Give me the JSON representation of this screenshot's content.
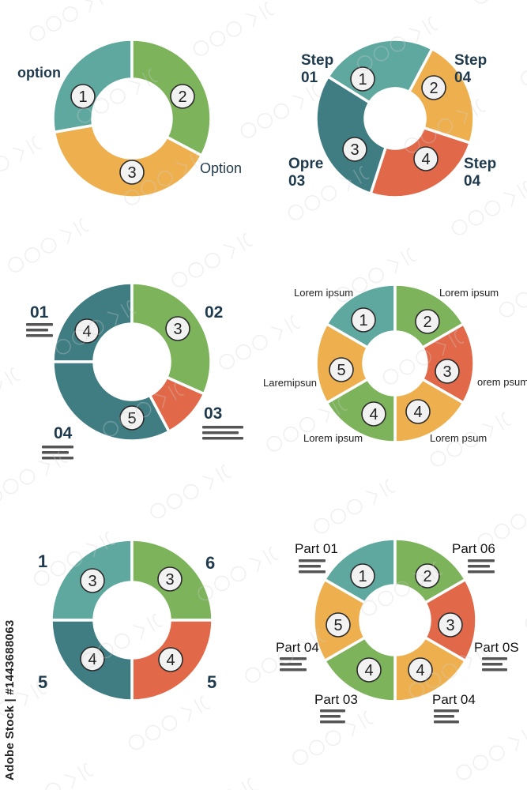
{
  "colors": {
    "teal": "#5fa8a0",
    "green": "#7cb35b",
    "orange": "#eeb04f",
    "red": "#e16949",
    "darkteal": "#3f7d83",
    "navy": "#1f3a4c",
    "badge": "#f2f2f2"
  },
  "credit": "Adobe Stock | #1443688063",
  "diagrams": [
    {
      "id": "d1",
      "segments": [
        {
          "num": "1",
          "color": "teal"
        },
        {
          "num": "2",
          "color": "green"
        },
        {
          "num": "3",
          "color": "orange"
        }
      ],
      "labels": [
        {
          "text": "option",
          "color": "navy"
        },
        {
          "text": "Option",
          "color": "navy"
        }
      ]
    },
    {
      "id": "d2",
      "segments": [
        {
          "num": "1",
          "color": "teal"
        },
        {
          "num": "2",
          "color": "orange"
        },
        {
          "num": "4",
          "color": "red"
        },
        {
          "num": "3",
          "color": "darkteal"
        }
      ],
      "labels": [
        {
          "text": "Step\n01",
          "color": "navy"
        },
        {
          "text": "Step\n04",
          "color": "navy"
        },
        {
          "text": "Step\n04",
          "color": "navy"
        },
        {
          "text": "Opre\n03",
          "color": "navy"
        }
      ]
    },
    {
      "id": "d3",
      "segments": [
        {
          "num": "4",
          "color": "darkteal"
        },
        {
          "num": "3",
          "color": "green"
        },
        {
          "num": "",
          "color": "red"
        },
        {
          "num": "5",
          "color": "darkteal"
        }
      ],
      "labels": [
        {
          "text": "01",
          "color": "navy"
        },
        {
          "text": "02",
          "color": "navy"
        },
        {
          "text": "03",
          "color": "navy"
        },
        {
          "text": "04",
          "color": "navy"
        }
      ]
    },
    {
      "id": "d4",
      "segments": [
        {
          "num": "1",
          "color": "teal"
        },
        {
          "num": "2",
          "color": "green"
        },
        {
          "num": "3",
          "color": "red"
        },
        {
          "num": "4",
          "color": "orange"
        },
        {
          "num": "4",
          "color": "green"
        },
        {
          "num": "5",
          "color": "orange"
        }
      ],
      "labels": [
        {
          "text": "Lorem ipsum",
          "color": "#222222"
        },
        {
          "text": "Lorem ipsum",
          "color": "#222222"
        },
        {
          "text": "orem psum",
          "color": "#222222"
        },
        {
          "text": "Lorem  psum",
          "color": "#222222"
        },
        {
          "text": "Lorem ipsum",
          "color": "#222222"
        },
        {
          "text": "Laremipsun",
          "color": "#222222"
        }
      ]
    },
    {
      "id": "d5",
      "segments": [
        {
          "num": "3",
          "color": "teal"
        },
        {
          "num": "3",
          "color": "green"
        },
        {
          "num": "4",
          "color": "red"
        },
        {
          "num": "4",
          "color": "darkteal"
        }
      ],
      "labels": [
        {
          "text": "1",
          "color": "navy"
        },
        {
          "text": "6",
          "color": "navy"
        },
        {
          "text": "5",
          "color": "navy"
        },
        {
          "text": "5",
          "color": "navy"
        }
      ]
    },
    {
      "id": "d6",
      "segments": [
        {
          "num": "1",
          "color": "teal"
        },
        {
          "num": "2",
          "color": "green"
        },
        {
          "num": "3",
          "color": "red"
        },
        {
          "num": "4",
          "color": "orange"
        },
        {
          "num": "4",
          "color": "green"
        },
        {
          "num": "5",
          "color": "orange"
        }
      ],
      "labels": [
        {
          "text": "Part 01",
          "color": "#111111"
        },
        {
          "text": "Part 06",
          "color": "#111111"
        },
        {
          "text": "Part 0S",
          "color": "#111111"
        },
        {
          "text": "Part 04",
          "color": "#111111"
        },
        {
          "text": "Part 03",
          "color": "#111111"
        },
        {
          "text": "Part 04",
          "color": "#111111"
        }
      ]
    }
  ]
}
